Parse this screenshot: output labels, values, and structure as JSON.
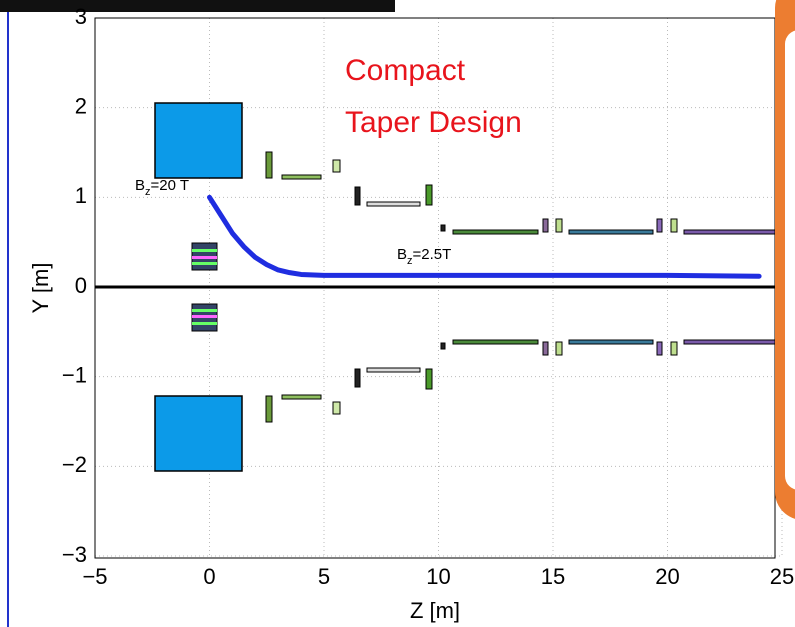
{
  "chart_data": {
    "type": "line",
    "annotations": [
      "Compact",
      "Taper Design"
    ],
    "field_labels": [
      {
        "base": "B",
        "sub": "z",
        "value": "=20 T"
      },
      {
        "base": "B",
        "sub": "z",
        "value": "=2.5T"
      }
    ],
    "x_label": "Z [m]",
    "y_label": "Y [m]",
    "x": [
      0,
      0.5,
      1,
      1.5,
      2,
      2.5,
      3,
      3.5,
      4,
      5,
      10,
      15,
      20,
      24
    ],
    "series": [
      {
        "color": "#1f2de0",
        "values": [
          1,
          0.8,
          0.6,
          0.45,
          0.33,
          0.25,
          0.19,
          0.16,
          0.14,
          0.13,
          0.13,
          0.13,
          0.13,
          0.12
        ]
      }
    ],
    "xlim": [
      -5,
      25
    ],
    "ylim": [
      -3,
      3
    ],
    "xticks": [
      {
        "value": -5,
        "label": "−5"
      },
      0,
      5,
      10,
      15,
      20,
      25
    ],
    "yticks": [
      {
        "value": -3,
        "label": "−3"
      },
      {
        "value": -2,
        "label": "−2"
      },
      {
        "value": -1,
        "label": "−1"
      },
      0,
      1,
      2,
      3
    ],
    "grid": true
  }
}
